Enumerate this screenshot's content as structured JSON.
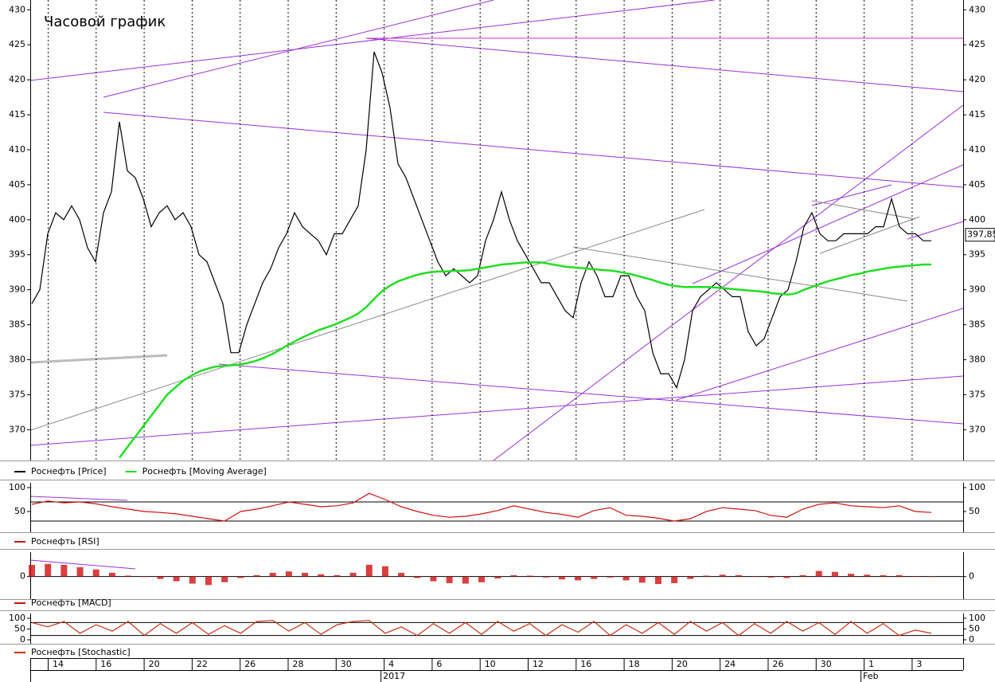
{
  "title": "Часовой график",
  "x_axis": {
    "ticks": [
      "14",
      "16",
      "20",
      "22",
      "26",
      "28",
      "30",
      "4",
      "6",
      "10",
      "12",
      "16",
      "18",
      "20",
      "24",
      "26",
      "30",
      "1",
      "3"
    ],
    "period_labels": [
      "2017",
      "Feb"
    ]
  },
  "chart_data": [
    {
      "type": "line",
      "ylim": [
        365.6,
        431.4
      ],
      "yticks": [
        370,
        375,
        380,
        385,
        390,
        395,
        400,
        405,
        410,
        415,
        420,
        425,
        430
      ],
      "last_price": {
        "value": 397.85,
        "label": "397,85"
      },
      "series": [
        {
          "name": "Роснефть [Price]",
          "color": "#000000",
          "values": [
            388,
            390,
            398,
            401,
            400,
            402,
            400,
            396,
            394,
            401,
            404,
            414,
            407,
            406,
            403,
            399,
            401,
            402,
            400,
            401,
            399,
            395,
            394,
            391,
            388,
            381,
            381,
            385,
            388,
            391,
            393,
            396,
            398,
            401,
            399,
            398,
            397,
            395,
            398,
            398,
            400,
            402,
            410,
            424,
            421,
            416,
            408,
            406,
            403,
            400,
            397,
            394,
            392,
            393,
            392,
            391,
            392,
            397,
            400,
            404,
            400,
            397,
            395,
            393,
            391,
            391,
            389,
            387,
            386,
            391,
            394,
            392,
            389,
            389,
            392,
            392,
            389,
            387,
            381,
            378,
            378,
            376,
            380,
            387,
            389,
            390,
            391,
            390,
            389,
            389,
            384,
            382,
            383,
            386,
            389,
            390,
            394,
            399,
            401,
            398,
            397,
            397,
            398,
            398,
            398,
            398,
            399,
            399,
            403,
            399,
            398,
            398,
            397,
            397
          ]
        },
        {
          "name": "Роснефть [Moving Average]",
          "color": "#22dd22",
          "values": [
            null,
            null,
            null,
            null,
            null,
            null,
            null,
            null,
            null,
            null,
            null,
            366,
            367.5,
            369,
            370.5,
            372,
            373.5,
            375,
            376,
            377,
            377.7,
            378.3,
            378.7,
            379,
            379.1,
            379.2,
            379.3,
            379.5,
            379.8,
            380.2,
            380.7,
            381.3,
            382,
            382.6,
            383.2,
            383.7,
            384.2,
            384.6,
            385,
            385.5,
            386,
            386.6,
            387.5,
            388.7,
            389.8,
            390.6,
            391.2,
            391.6,
            392,
            392.3,
            392.5,
            392.6,
            392.6,
            392.7,
            392.7,
            392.8,
            393,
            393.2,
            393.4,
            393.6,
            393.7,
            393.8,
            393.9,
            393.9,
            393.9,
            393.7,
            393.5,
            393.3,
            393.2,
            393.1,
            393,
            392.9,
            392.8,
            392.7,
            392.5,
            392.3,
            392,
            391.7,
            391.4,
            391,
            390.7,
            390.5,
            390.4,
            390.4,
            390.4,
            390.4,
            390.3,
            390.2,
            390.1,
            390,
            389.9,
            389.8,
            389.7,
            389.5,
            389.4,
            389.3,
            389.5,
            390,
            390.4,
            390.8,
            391.2,
            391.5,
            391.8,
            392.1,
            392.3,
            392.6,
            392.8,
            393,
            393.2,
            393.3,
            393.4,
            393.5,
            393.6,
            393.6
          ]
        }
      ]
    },
    {
      "type": "line",
      "ylim": [
        6.7,
        110
      ],
      "yticks": [
        50,
        100
      ],
      "levels": [
        70,
        30
      ],
      "series": [
        {
          "name": "Роснефть [RSI]",
          "color": "#d01010",
          "values": [
            65,
            72,
            68,
            70,
            66,
            60,
            55,
            50,
            48,
            45,
            40,
            35,
            30,
            50,
            55,
            62,
            70,
            65,
            60,
            62,
            68,
            88,
            75,
            60,
            50,
            42,
            38,
            40,
            45,
            52,
            62,
            55,
            48,
            44,
            38,
            52,
            58,
            42,
            40,
            36,
            30,
            35,
            50,
            58,
            55,
            52,
            42,
            38,
            55,
            65,
            68,
            62,
            60,
            58,
            62,
            50,
            48
          ]
        }
      ]
    },
    {
      "type": "bar",
      "ylim": [
        -4.8,
        5.2
      ],
      "yticks": [
        0
      ],
      "series": [
        {
          "name": "Роснефть [MACD]",
          "color": "#d01010",
          "values": [
            2.5,
            2.7,
            2.5,
            2,
            1.5,
            0.8,
            0.2,
            0,
            -0.5,
            -1,
            -1.5,
            -1.8,
            -1.2,
            -0.3,
            0.3,
            0.8,
            1.1,
            0.8,
            0.5,
            0.3,
            0.8,
            2.5,
            2.2,
            0.8,
            -0.3,
            -1,
            -1.4,
            -1.5,
            -1.2,
            -0.4,
            0.3,
            0.2,
            -0.2,
            -0.6,
            -0.8,
            -0.5,
            -0.2,
            -0.8,
            -1.3,
            -1.6,
            -1.4,
            -0.5,
            0.2,
            0.4,
            0.3,
            0.1,
            -0.2,
            -0.3,
            0.3,
            1.2,
            1,
            0.6,
            0.4,
            0.3,
            0.3,
            0.1,
            0
          ]
        }
      ]
    },
    {
      "type": "line",
      "ylim": [
        -18.5,
        122
      ],
      "yticks": [
        0,
        50,
        100
      ],
      "levels": [
        80,
        20
      ],
      "series": [
        {
          "name": "Роснефть [Stochastic]",
          "color": "#c83010",
          "values": [
            80,
            60,
            85,
            30,
            70,
            40,
            85,
            20,
            75,
            30,
            80,
            25,
            65,
            30,
            85,
            90,
            40,
            80,
            25,
            70,
            85,
            90,
            30,
            60,
            20,
            75,
            30,
            80,
            25,
            85,
            40,
            75,
            20,
            70,
            35,
            85,
            20,
            70,
            30,
            80,
            25,
            85,
            40,
            80,
            20,
            75,
            30,
            85,
            40,
            80,
            25,
            85,
            30,
            75,
            20,
            45,
            30
          ]
        }
      ]
    }
  ]
}
